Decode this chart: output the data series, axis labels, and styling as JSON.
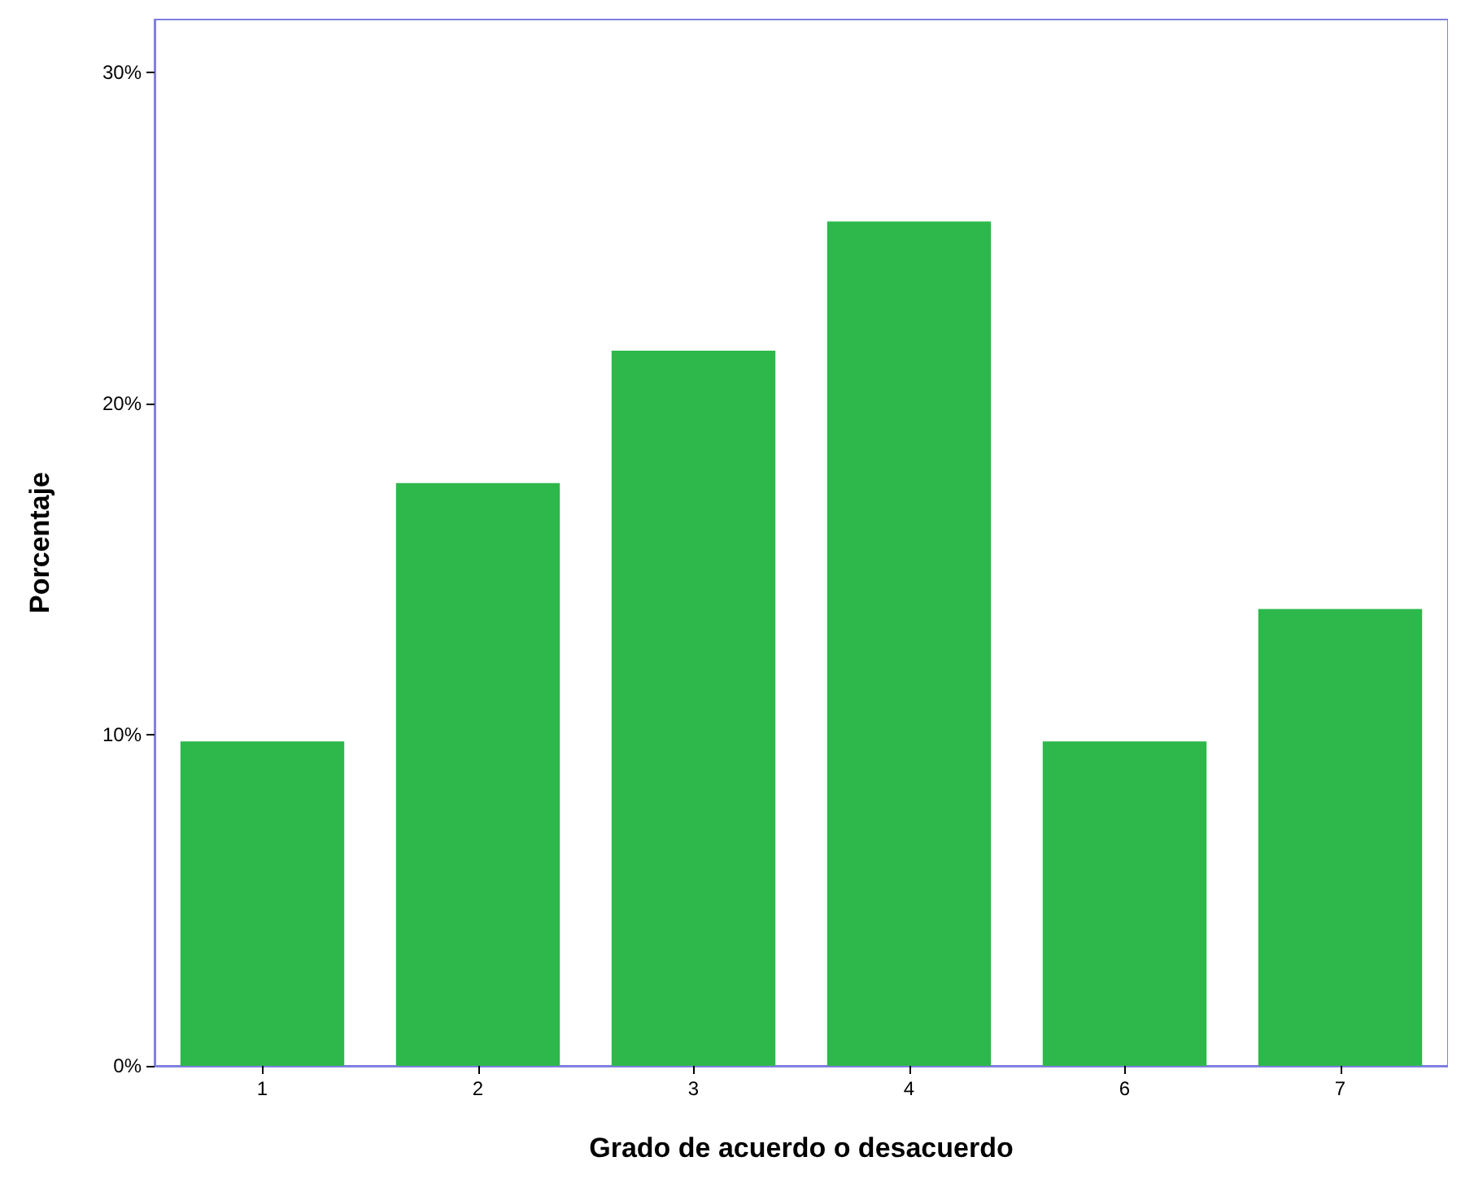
{
  "chart_data": {
    "type": "bar",
    "xlabel": "Grado de acuerdo o desacuerdo",
    "ylabel": "Porcentaje",
    "categories": [
      "1",
      "2",
      "3",
      "4",
      "6",
      "7"
    ],
    "values": [
      9.8,
      17.6,
      21.6,
      25.5,
      9.8,
      13.8
    ],
    "color": "#2eb84b",
    "ylim": [
      0,
      31.6
    ],
    "yticks": [
      {
        "value": 0,
        "label": "0%"
      },
      {
        "value": 10,
        "label": "10%"
      },
      {
        "value": 20,
        "label": "20%"
      },
      {
        "value": 30,
        "label": "30%"
      }
    ],
    "grid": false
  }
}
